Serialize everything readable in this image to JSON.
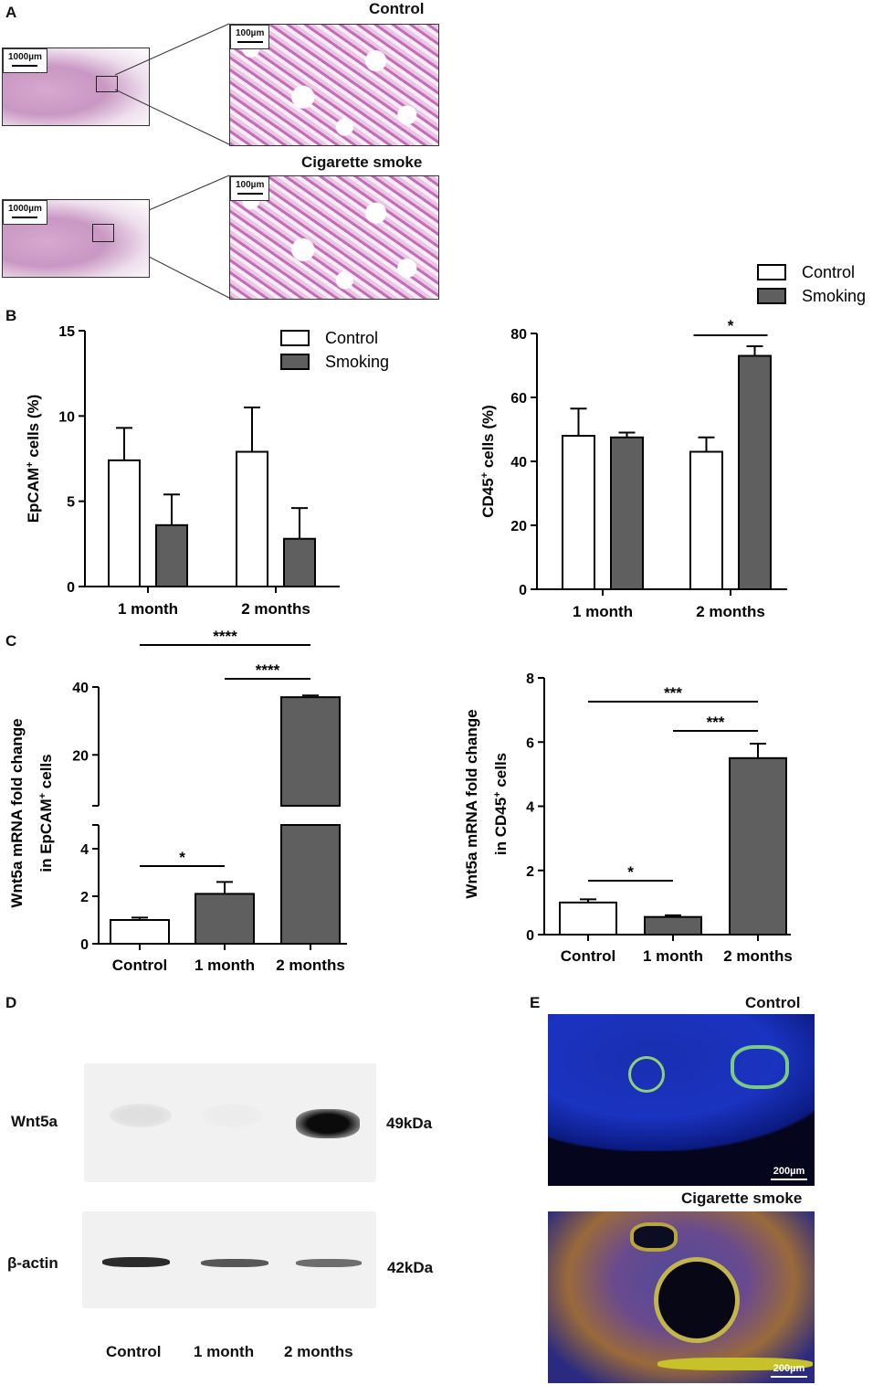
{
  "panels": {
    "A": {
      "letter": "A",
      "control_label": "Control",
      "smoke_label": "Cigarette smoke",
      "scale_low": "1000µm",
      "scale_high": "100µm"
    },
    "B": {
      "letter": "B"
    },
    "C": {
      "letter": "C"
    },
    "D": {
      "letter": "D",
      "wnt5a_label": "Wnt5a",
      "wnt5a_kda": "49kDa",
      "actin_label": "β-actin",
      "actin_kda": "42kDa",
      "lanes": [
        "Control",
        "1 month",
        "2 months"
      ],
      "wnt5a_band_intensity": [
        0.08,
        0.02,
        1.0
      ],
      "actin_band_intensity": [
        0.9,
        0.7,
        0.6
      ]
    },
    "E": {
      "letter": "E",
      "control_label": "Control",
      "smoke_label": "Cigarette smoke",
      "scale": "200µm"
    }
  },
  "chart_data": [
    {
      "id": "B-left",
      "type": "bar",
      "categories": [
        "1 month",
        "2 months"
      ],
      "series": [
        {
          "name": "Control",
          "values": [
            7.4,
            7.9
          ],
          "errors": [
            1.9,
            2.6
          ],
          "color": "#ffffff"
        },
        {
          "name": "Smoking",
          "values": [
            3.6,
            2.8
          ],
          "errors": [
            1.8,
            1.8
          ],
          "color": "#5f5f5f"
        }
      ],
      "ylabel_main": "EpCAM",
      "ylabel_sup": "+",
      "ylabel_rest": " cells (%)",
      "ylim": [
        0,
        15
      ],
      "yticks": [
        0,
        5,
        10,
        15
      ],
      "legend": "top-right",
      "significance": []
    },
    {
      "id": "B-right",
      "type": "bar",
      "categories": [
        "1 month",
        "2 months"
      ],
      "series": [
        {
          "name": "Control",
          "values": [
            48,
            43
          ],
          "errors": [
            8.5,
            4.5
          ],
          "color": "#ffffff"
        },
        {
          "name": "Smoking",
          "values": [
            47.5,
            73
          ],
          "errors": [
            1.5,
            3
          ],
          "color": "#5f5f5f"
        }
      ],
      "ylabel_main": "CD45",
      "ylabel_sup": "+",
      "ylabel_rest": " cells (%)",
      "ylim": [
        0,
        80
      ],
      "yticks": [
        0,
        20,
        40,
        60,
        80
      ],
      "legend": "top-right",
      "significance": [
        {
          "from": [
            1,
            0
          ],
          "to": [
            1,
            1
          ],
          "label": "*"
        }
      ]
    },
    {
      "id": "C-left",
      "type": "bar",
      "categories": [
        "Control",
        "1 month",
        "2 months"
      ],
      "values": [
        1.0,
        2.1,
        37.0
      ],
      "errors": [
        0.1,
        0.5,
        0.5
      ],
      "colors": [
        "#ffffff",
        "#5f5f5f",
        "#5f5f5f"
      ],
      "ylabel_line1": "Wnt5a mRNA fold change",
      "ylabel_line2_main": "in EpCAM",
      "ylabel_sup": "+",
      "ylabel_line2_rest": " cells",
      "broken_axis": {
        "lower": [
          0,
          5
        ],
        "upper": [
          5,
          40
        ]
      },
      "yticks_lower": [
        0,
        2,
        4
      ],
      "yticks_upper": [
        20,
        40
      ],
      "significance": [
        {
          "from": 0,
          "to": 2,
          "label": "****",
          "level": 2
        },
        {
          "from": 1,
          "to": 2,
          "label": "****",
          "level": 1
        },
        {
          "from": 0,
          "to": 1,
          "label": "*",
          "level": 0
        }
      ]
    },
    {
      "id": "C-right",
      "type": "bar",
      "categories": [
        "Control",
        "1 month",
        "2 months"
      ],
      "values": [
        1.0,
        0.55,
        5.5
      ],
      "errors": [
        0.1,
        0.05,
        0.45
      ],
      "colors": [
        "#ffffff",
        "#5f5f5f",
        "#5f5f5f"
      ],
      "ylabel_line1": "Wnt5a mRNA fold change",
      "ylabel_line2_main": "in CD45",
      "ylabel_sup": "+",
      "ylabel_line2_rest": " cells",
      "ylim": [
        0,
        8
      ],
      "yticks": [
        0,
        2,
        4,
        6,
        8
      ],
      "significance": [
        {
          "from": 0,
          "to": 2,
          "label": "***",
          "level": 2
        },
        {
          "from": 1,
          "to": 2,
          "label": "***",
          "level": 1
        },
        {
          "from": 0,
          "to": 1,
          "label": "*",
          "level": 0
        }
      ]
    }
  ]
}
